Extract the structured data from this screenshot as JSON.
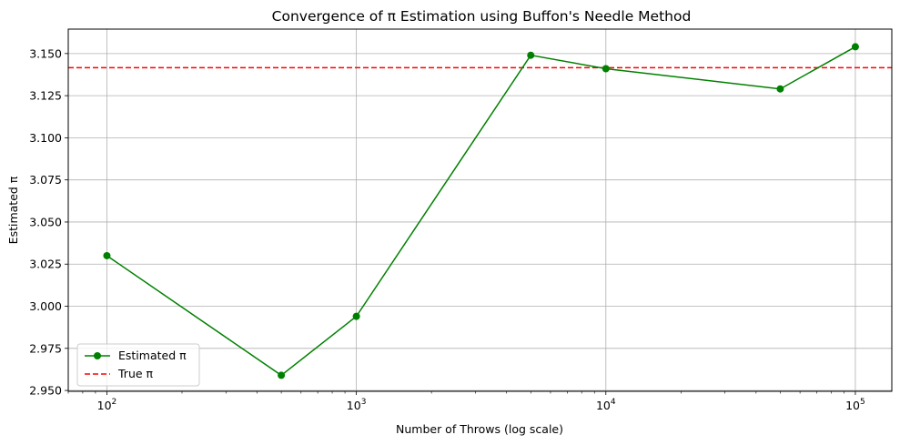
{
  "chart_data": {
    "type": "line",
    "title": "Convergence of π Estimation using Buffon's Needle Method",
    "xlabel": "Number of Throws (log scale)",
    "ylabel": "Estimated π",
    "x_scale": "log",
    "xlim": [
      70,
      140000
    ],
    "ylim": [
      2.9495,
      3.1645
    ],
    "x_ticks": [
      {
        "value": 100,
        "base": "10",
        "exp": "2"
      },
      {
        "value": 1000,
        "base": "10",
        "exp": "3"
      },
      {
        "value": 10000,
        "base": "10",
        "exp": "4"
      },
      {
        "value": 100000,
        "base": "10",
        "exp": "5"
      }
    ],
    "y_ticks": [
      2.95,
      2.975,
      3.0,
      3.025,
      3.05,
      3.075,
      3.1,
      3.125,
      3.15
    ],
    "grid": true,
    "legend_position": "lower-left",
    "series": [
      {
        "name": "Estimated π",
        "color": "#008000",
        "style": "solid",
        "marker": "circle",
        "x": [
          100,
          500,
          1000,
          5000,
          10000,
          50000,
          100000
        ],
        "y": [
          3.03,
          2.959,
          2.994,
          3.149,
          3.141,
          3.129,
          3.154
        ]
      }
    ],
    "reference_lines": [
      {
        "name": "True π",
        "value": 3.14159,
        "color": "#ff0000",
        "style": "dashed"
      }
    ]
  }
}
